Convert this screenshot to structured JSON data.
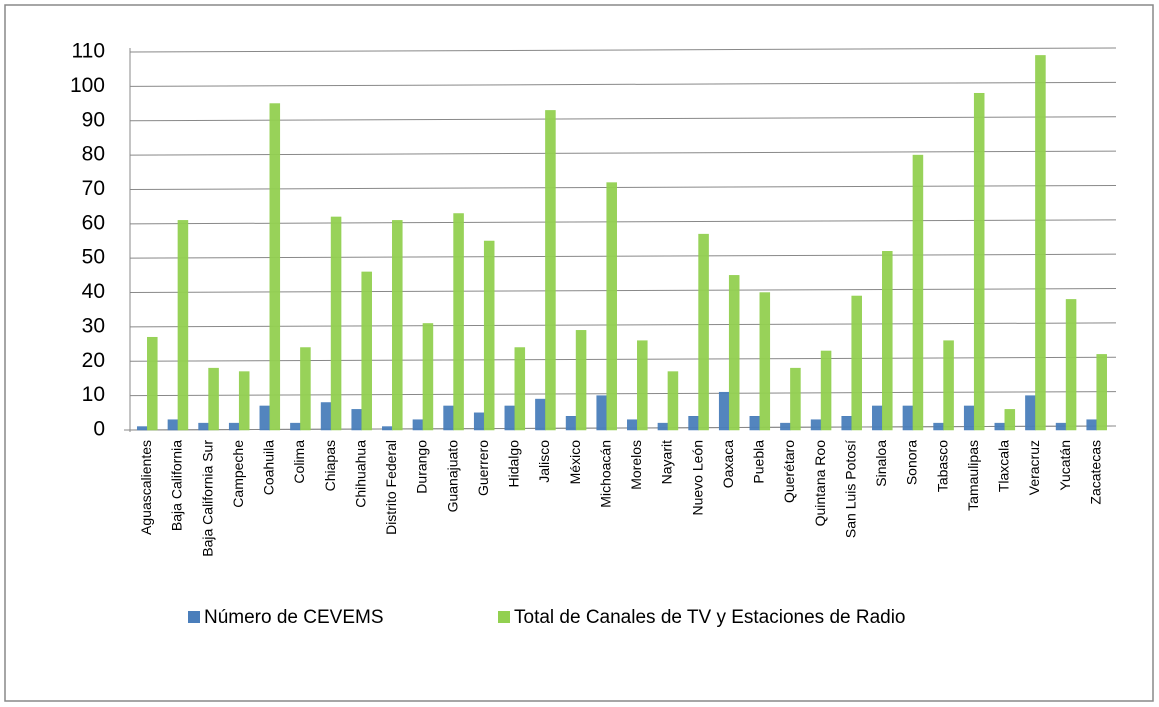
{
  "chart_data": {
    "type": "bar",
    "categories": [
      "Aguascalientes",
      "Baja California",
      "Baja California Sur",
      "Campeche",
      "Coahuila",
      "Colima",
      "Chiapas",
      "Chihuahua",
      "Distrito Federal",
      "Durango",
      "Guanajuato",
      "Guerrero",
      "Hidalgo",
      "Jalisco",
      "México",
      "Michoacán",
      "Morelos",
      "Nayarit",
      "Nuevo León",
      "Oaxaca",
      "Puebla",
      "Querétaro",
      "Quintana Roo",
      "San Luis Potosí",
      "Sinaloa",
      "Sonora",
      "Tabasco",
      "Tamaulipas",
      "Tlaxcala",
      "Veracruz",
      "Yucatán",
      "Zacatecas"
    ],
    "series": [
      {
        "name": "Número de CEVEMS",
        "color": "#4a7ebb",
        "values": [
          1,
          3,
          2,
          2,
          7,
          2,
          8,
          6,
          1,
          3,
          7,
          5,
          7,
          9,
          4,
          10,
          3,
          2,
          4,
          11,
          4,
          2,
          3,
          4,
          7,
          7,
          2,
          7,
          2,
          10,
          2,
          3
        ]
      },
      {
        "name": "Total de Canales de TV y Estaciones de Radio",
        "color": "#92d050",
        "values": [
          27,
          61,
          18,
          17,
          95,
          24,
          62,
          46,
          61,
          31,
          63,
          55,
          24,
          93,
          29,
          72,
          26,
          17,
          57,
          45,
          40,
          18,
          23,
          39,
          52,
          80,
          26,
          98,
          6,
          109,
          38,
          22
        ]
      }
    ],
    "ylim": [
      0,
      110
    ],
    "yticks": [
      0,
      10,
      20,
      30,
      40,
      50,
      60,
      70,
      80,
      90,
      100,
      110
    ],
    "grid": true,
    "legend": "bottom"
  }
}
